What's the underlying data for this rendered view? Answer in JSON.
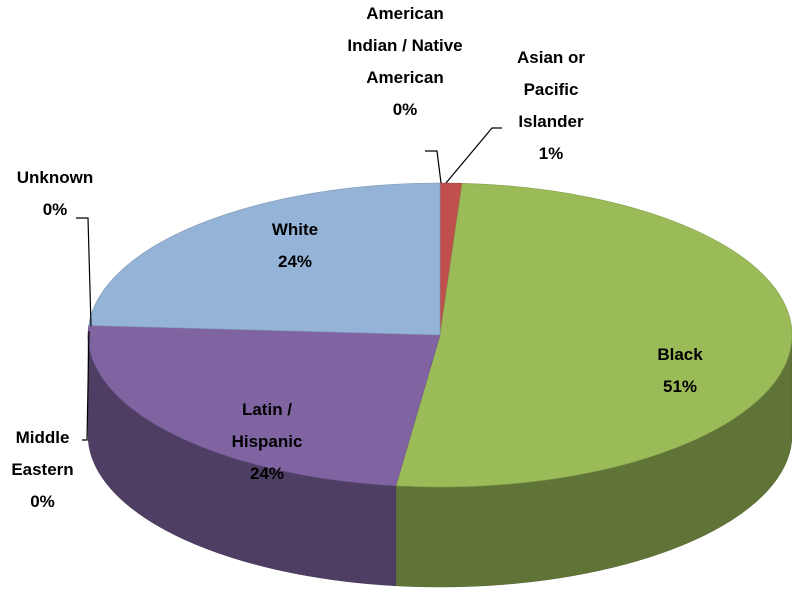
{
  "chart_data": {
    "type": "pie",
    "categories": [
      "American Indian / Native American",
      "Asian or Pacific Islander",
      "Black",
      "Latin / Hispanic",
      "Middle Eastern",
      "Unknown",
      "White"
    ],
    "values": [
      0,
      1,
      51,
      24,
      0,
      0,
      24
    ],
    "value_labels": [
      "0%",
      "1%",
      "51%",
      "24%",
      "0%",
      "0%",
      "24%"
    ],
    "colors": [
      "#4f81bd",
      "#c0504d",
      "#9bbb59",
      "#8064a2",
      "#4bacc6",
      "#4bacc6",
      "#95b3d7"
    ]
  }
}
